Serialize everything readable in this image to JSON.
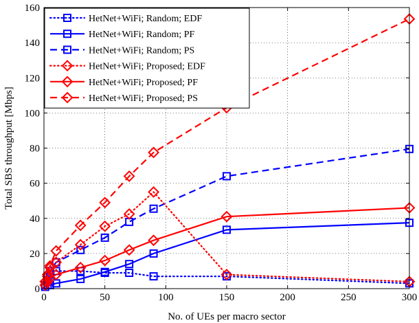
{
  "chart_data": {
    "type": "line",
    "xlabel": "No. of UEs per macro sector",
    "ylabel": "Total SBS throughput [Mbps]",
    "xlim": [
      0,
      300
    ],
    "ylim": [
      0,
      160
    ],
    "xticks": [
      0,
      50,
      100,
      150,
      200,
      250,
      300
    ],
    "yticks": [
      0,
      20,
      40,
      60,
      80,
      100,
      120,
      140,
      160
    ],
    "grid": true,
    "legend_position": "top-left",
    "x": [
      1,
      3,
      5,
      10,
      30,
      50,
      70,
      90,
      150,
      300
    ],
    "series": [
      {
        "name": "HetNet+WiFi; Random; EDF",
        "color": "#0000ff",
        "line": "dotted",
        "marker": "square",
        "values": [
          2,
          5,
          8,
          10,
          10,
          9,
          9,
          7,
          7,
          3
        ]
      },
      {
        "name": "HetNet+WiFi; Random; PF",
        "color": "#0000ff",
        "line": "solid",
        "marker": "square",
        "values": [
          1,
          2,
          2,
          3,
          5.5,
          9.5,
          14,
          20,
          33.5,
          37.5
        ]
      },
      {
        "name": "HetNet+WiFi; Random; PS",
        "color": "#0000ff",
        "line": "dashed",
        "marker": "square",
        "values": [
          2,
          7,
          10,
          15,
          22,
          29,
          38,
          45.5,
          64,
          79.5
        ]
      },
      {
        "name": "HetNet+WiFi; Proposed; EDF",
        "color": "#ff0000",
        "line": "dotted",
        "marker": "diamond",
        "values": [
          4,
          7,
          12,
          15,
          25,
          35.5,
          42.5,
          55,
          8,
          4
        ]
      },
      {
        "name": "HetNet+WiFi; Proposed; PF",
        "color": "#ff0000",
        "line": "solid",
        "marker": "diamond",
        "values": [
          2,
          4,
          6,
          8,
          12,
          16,
          22,
          27.5,
          41,
          46
        ]
      },
      {
        "name": "HetNet+WiFi; Proposed; PS",
        "color": "#ff0000",
        "line": "dashed",
        "marker": "diamond",
        "values": [
          4,
          8,
          13,
          21.5,
          36,
          49,
          64,
          77.5,
          103,
          153.5
        ]
      }
    ]
  }
}
